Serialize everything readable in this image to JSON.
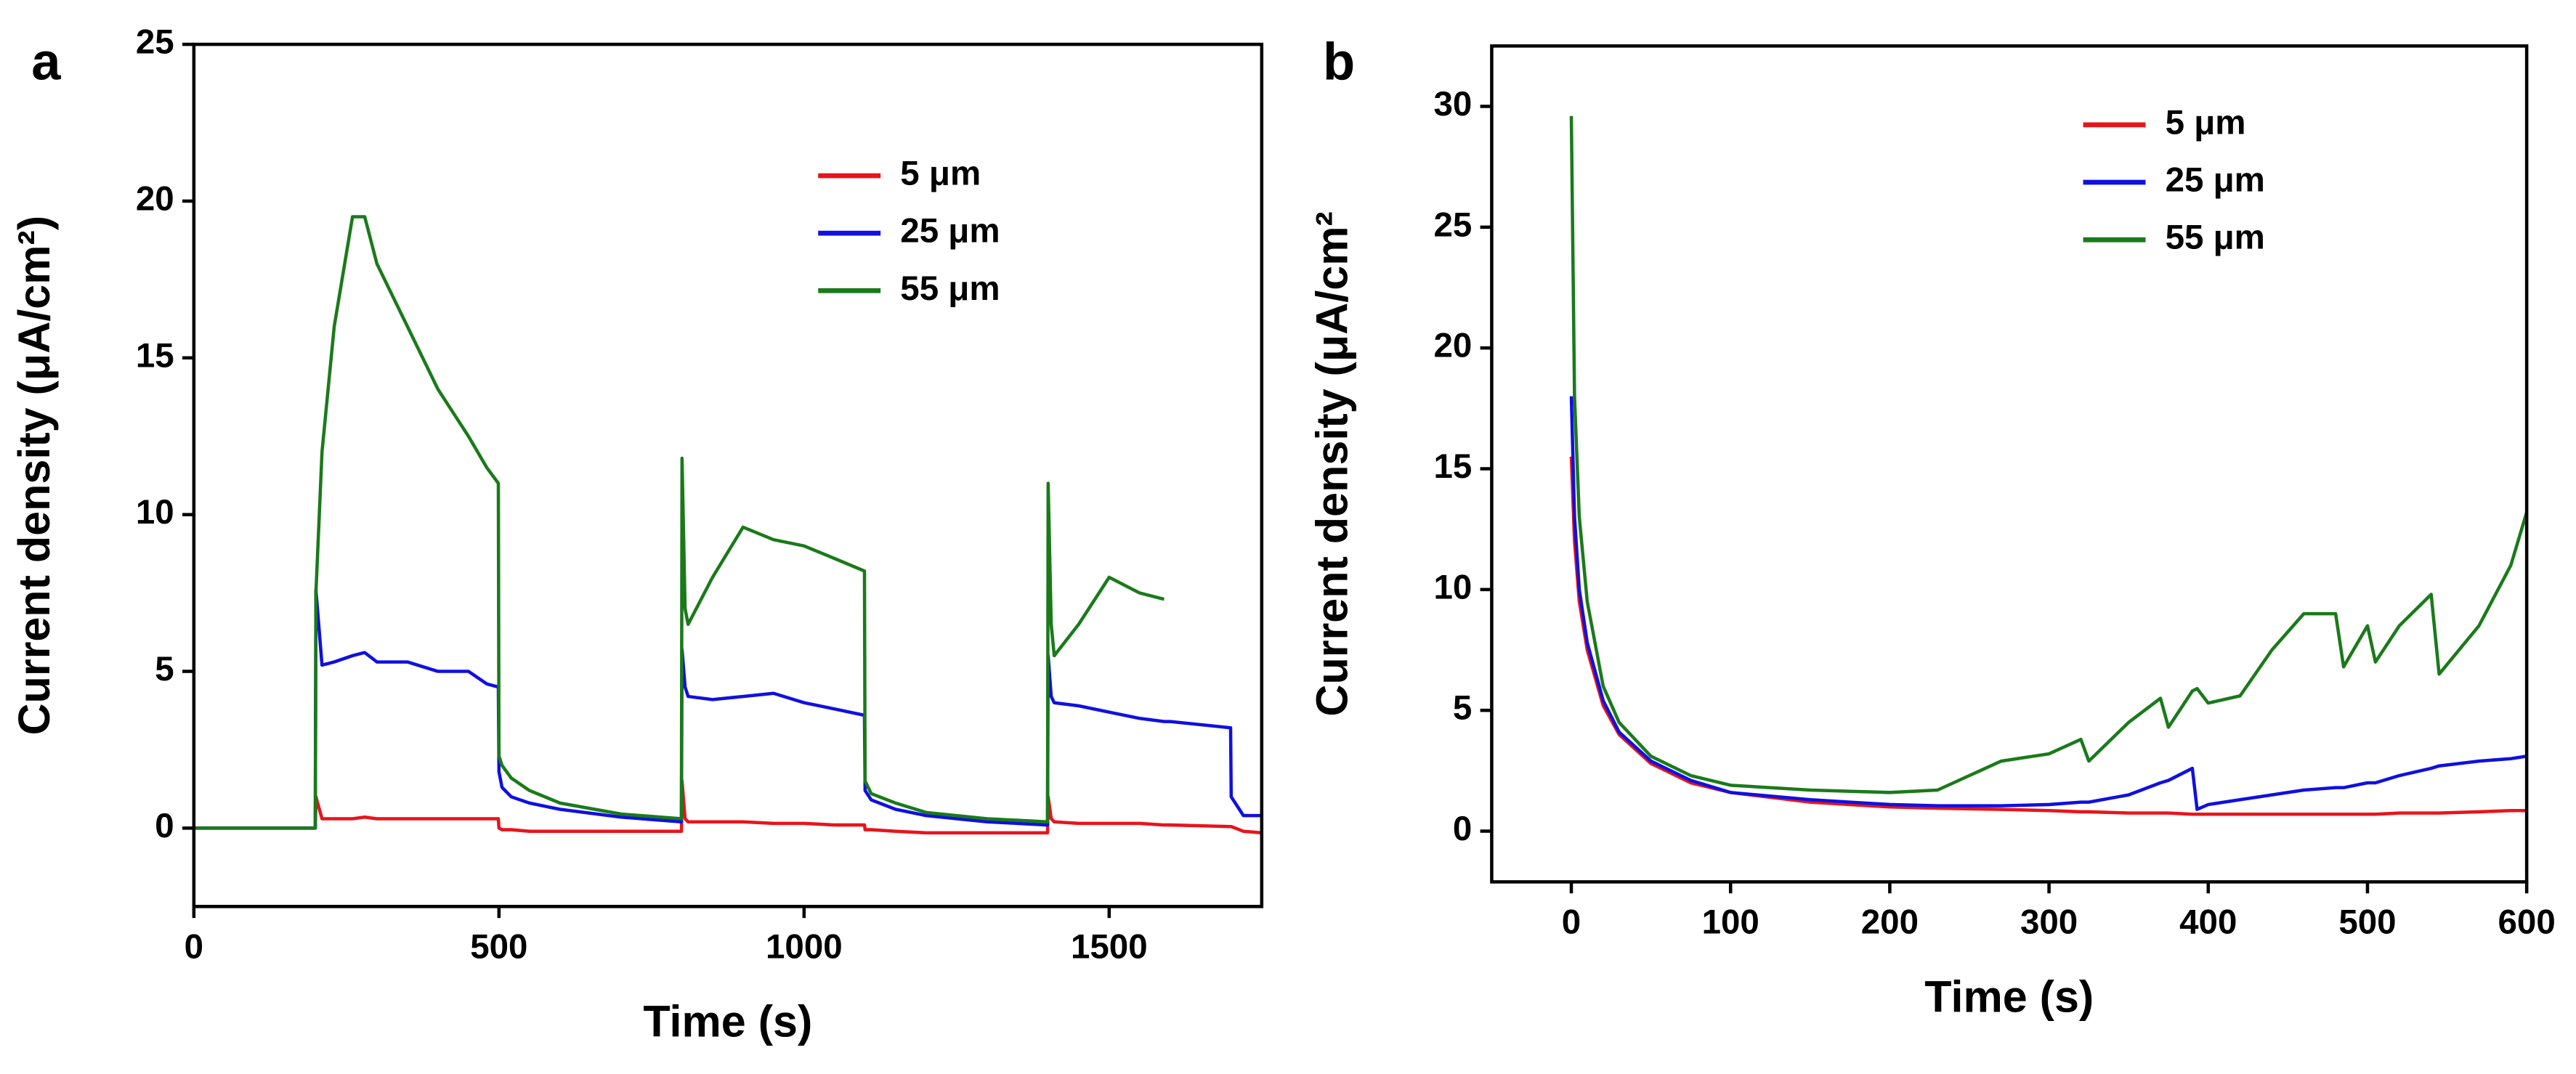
{
  "chart_data": [
    {
      "type": "line",
      "panel": "a",
      "xlabel": "Time (s)",
      "ylabel": "Current density (μA/cm²)",
      "xlim": [
        0,
        1750
      ],
      "ylim": [
        -2.5,
        25
      ],
      "xticks": [
        0,
        500,
        1000,
        1500
      ],
      "yticks": [
        0,
        5,
        10,
        15,
        20,
        25
      ],
      "legend": "upper right",
      "x": [
        0,
        199,
        200,
        210,
        230,
        260,
        280,
        300,
        350,
        400,
        450,
        480,
        499,
        500,
        505,
        520,
        550,
        600,
        700,
        799,
        800,
        805,
        810,
        850,
        900,
        950,
        1000,
        1050,
        1099,
        1100,
        1110,
        1150,
        1200,
        1300,
        1399,
        1400,
        1405,
        1410,
        1450,
        1500,
        1550,
        1590,
        1600,
        1699,
        1700,
        1720,
        1750
      ],
      "series": [
        {
          "name": "5 μm",
          "color": "#e8141c",
          "values": [
            0,
            0,
            1.0,
            0.3,
            0.3,
            0.3,
            0.35,
            0.3,
            0.3,
            0.3,
            0.3,
            0.3,
            0.3,
            0.0,
            -0.05,
            -0.05,
            -0.1,
            -0.1,
            -0.1,
            -0.1,
            1.5,
            0.3,
            0.2,
            0.2,
            0.2,
            0.15,
            0.15,
            0.1,
            0.1,
            -0.05,
            -0.05,
            -0.1,
            -0.15,
            -0.15,
            -0.15,
            1.0,
            0.3,
            0.2,
            0.15,
            0.15,
            0.15,
            0.1,
            0.1,
            0.05,
            0.05,
            -0.1,
            -0.15
          ]
        },
        {
          "name": "25 μm",
          "color": "#1010e0",
          "values": [
            0,
            0,
            7.6,
            5.2,
            5.3,
            5.5,
            5.6,
            5.3,
            5.3,
            5.0,
            5.0,
            4.6,
            4.5,
            1.8,
            1.3,
            1.0,
            0.8,
            0.6,
            0.35,
            0.2,
            5.7,
            4.5,
            4.2,
            4.1,
            4.2,
            4.3,
            4.0,
            3.8,
            3.6,
            1.2,
            0.9,
            0.6,
            0.4,
            0.2,
            0.1,
            5.5,
            4.2,
            4.0,
            3.9,
            3.7,
            3.5,
            3.4,
            3.4,
            3.2,
            1.0,
            0.4,
            0.4
          ]
        },
        {
          "name": "55 μm",
          "color": "#1a7a1a",
          "values": [
            0,
            0,
            7.5,
            12,
            16,
            19.5,
            19.5,
            18,
            16,
            14,
            12.5,
            11.5,
            11,
            2.3,
            2.0,
            1.6,
            1.2,
            0.8,
            0.45,
            0.3,
            11.8,
            7,
            6.5,
            8,
            9.6,
            9.2,
            9.0,
            8.6,
            8.2,
            1.5,
            1.1,
            0.8,
            0.5,
            0.3,
            0.2,
            11,
            6.5,
            5.5,
            6.5,
            8.0,
            7.5,
            7.3,
            null,
            null,
            null,
            null,
            null
          ]
        }
      ]
    },
    {
      "type": "line",
      "panel": "b",
      "xlabel": "Time (s)",
      "ylabel": "Current density (μA/cm²",
      "xlim": [
        -50,
        600
      ],
      "ylim": [
        -2.1,
        32.5
      ],
      "xticks": [
        0,
        100,
        200,
        300,
        400,
        500,
        600
      ],
      "yticks": [
        0,
        5,
        10,
        15,
        20,
        25,
        30
      ],
      "legend": "upper right",
      "x": [
        0,
        2,
        5,
        10,
        20,
        30,
        50,
        75,
        100,
        150,
        200,
        230,
        270,
        300,
        320,
        325,
        350,
        370,
        375,
        390,
        393,
        400,
        420,
        440,
        460,
        480,
        485,
        500,
        505,
        520,
        540,
        545,
        570,
        590,
        600
      ],
      "series": [
        {
          "name": "5 μm",
          "color": "#e8141c",
          "values": [
            15.5,
            12,
            9.5,
            7.5,
            5.2,
            4.0,
            2.8,
            2.0,
            1.6,
            1.2,
            1.0,
            0.95,
            0.9,
            0.85,
            0.8,
            0.8,
            0.75,
            0.75,
            0.75,
            0.7,
            0.7,
            0.7,
            0.7,
            0.7,
            0.7,
            0.7,
            0.7,
            0.7,
            0.7,
            0.75,
            0.75,
            0.75,
            0.8,
            0.85,
            0.85
          ]
        },
        {
          "name": "25 μm",
          "color": "#1010e0",
          "values": [
            18,
            13,
            10,
            7.8,
            5.4,
            4.1,
            2.9,
            2.1,
            1.6,
            1.3,
            1.1,
            1.05,
            1.05,
            1.1,
            1.2,
            1.2,
            1.5,
            2.0,
            2.1,
            2.6,
            0.9,
            1.1,
            1.3,
            1.5,
            1.7,
            1.8,
            1.8,
            2.0,
            2.0,
            2.3,
            2.6,
            2.7,
            2.9,
            3.0,
            3.1
          ]
        },
        {
          "name": "55 μm",
          "color": "#1a7a1a",
          "values": [
            29.6,
            18,
            13,
            9.5,
            6.0,
            4.5,
            3.1,
            2.3,
            1.9,
            1.7,
            1.6,
            1.7,
            2.9,
            3.2,
            3.8,
            2.9,
            4.5,
            5.5,
            4.3,
            5.8,
            5.9,
            5.3,
            5.6,
            7.5,
            9.0,
            9.0,
            6.8,
            8.5,
            7.0,
            8.5,
            9.8,
            6.5,
            8.5,
            11,
            13.2
          ]
        }
      ]
    }
  ]
}
